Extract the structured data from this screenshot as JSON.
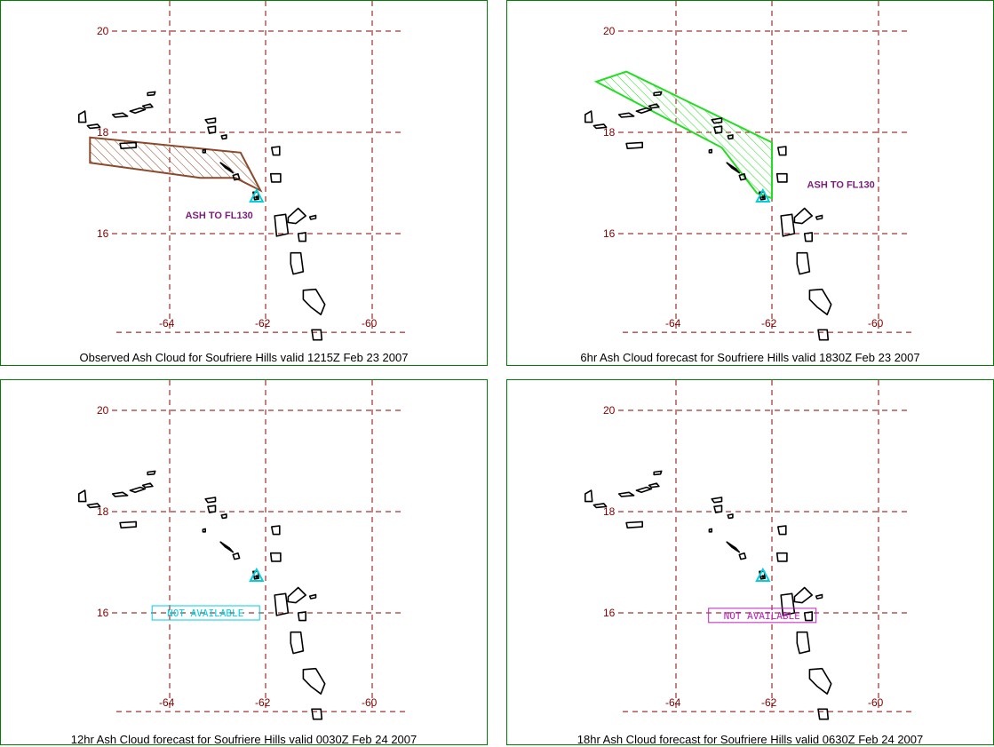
{
  "colors": {
    "border": "#008000",
    "grid": "#8b0000",
    "axis_label": "#800000",
    "coast": "#000000",
    "volcano": "#00cfe0",
    "obs_cloud": "#8b4a2b",
    "fcst6_cloud": "#22dd22",
    "ash_label": "#7a1d7a",
    "na12": "#00cfe0",
    "na18": "#c020c0"
  },
  "axes": {
    "lat_ticks": [
      "20",
      "18",
      "16"
    ],
    "lon_ticks": [
      "-64",
      "-62",
      "-60"
    ],
    "lat_range": [
      14.0,
      21.0
    ],
    "lon_range": [
      -66.0,
      -59.0
    ]
  },
  "volcano": {
    "name": "Soufriere Hills",
    "lat": 16.72,
    "lon": -62.18,
    "icon": "triangle-volcano-icon"
  },
  "panels": [
    {
      "id": "observed",
      "caption": "Observed Ash Cloud for Soufriere  Hills valid 1215Z Feb 23 2007",
      "cloud": {
        "polygon": [
          [
            -65.5,
            17.9
          ],
          [
            -62.5,
            17.6
          ],
          [
            -62.1,
            16.85
          ],
          [
            -62.6,
            17.1
          ],
          [
            -63.3,
            17.1
          ],
          [
            -65.5,
            17.4
          ]
        ],
        "label": "ASH TO FL130",
        "label_at": [
          -63.6,
          16.3
        ]
      },
      "not_available": null
    },
    {
      "id": "fcst6",
      "caption": "6hr Ash Cloud forecast for Soufriere  Hills valid 1830Z Feb 23 2007",
      "cloud": {
        "polygon": [
          [
            -65.5,
            19.0
          ],
          [
            -64.9,
            19.2
          ],
          [
            -62.0,
            17.8
          ],
          [
            -62.0,
            16.7
          ],
          [
            -62.3,
            16.8
          ],
          [
            -63.0,
            17.7
          ]
        ],
        "label": "ASH TO FL130",
        "label_at": [
          -61.3,
          16.9
        ]
      },
      "not_available": null
    },
    {
      "id": "fcst12",
      "caption": "12hr Ash Cloud forecast for Soufriere  Hills valid 0030Z Feb 24 2007",
      "cloud": null,
      "not_available": {
        "text": "NOT AVAILABLE",
        "at": [
          -63.2,
          16.0
        ]
      }
    },
    {
      "id": "fcst18",
      "caption": "18hr Ash Cloud forecast for Soufriere  Hills valid 0630Z Feb 24 2007",
      "cloud": null,
      "not_available": {
        "text": "NOT AVAILABLE",
        "at": [
          -62.2,
          15.95
        ]
      }
    }
  ]
}
